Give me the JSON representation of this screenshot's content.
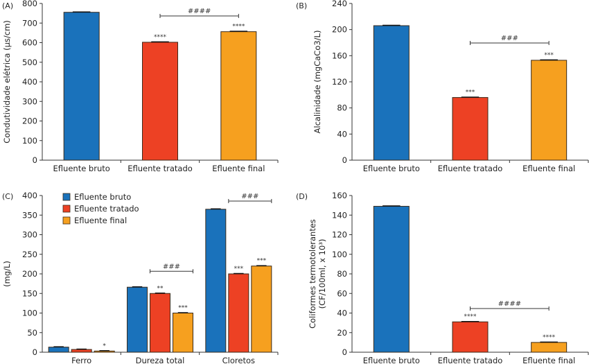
{
  "colors": {
    "Efluente bruto": "#1a72bb",
    "Efluente tratado": "#ed4124",
    "Efluente final": "#f6a01f"
  },
  "chart_data": [
    {
      "panel": "(A)",
      "type": "bar",
      "categories": [
        "Efluente bruto",
        "Efluente tratado",
        "Efluente final"
      ],
      "values": [
        755,
        602,
        656
      ],
      "ylabel": "Condutividade elétrica (µs/cm)",
      "xlabel": "",
      "ylim": [
        0,
        800
      ],
      "yticks": [
        0,
        100,
        200,
        300,
        400,
        500,
        600,
        700,
        800
      ],
      "significance": [
        "",
        "****",
        "****"
      ],
      "bracket": {
        "from": 1,
        "to": 2,
        "label": "####"
      }
    },
    {
      "panel": "(B)",
      "type": "bar",
      "categories": [
        "Efluente bruto",
        "Efluente tratado",
        "Efluente final"
      ],
      "values": [
        206,
        96,
        153
      ],
      "ylabel": "Alcalinidade (mgCaCo3/L)",
      "xlabel": "",
      "ylim": [
        0,
        240
      ],
      "yticks": [
        0,
        40,
        80,
        120,
        160,
        200,
        240
      ],
      "significance": [
        "",
        "***",
        "***"
      ],
      "bracket": {
        "from": 1,
        "to": 2,
        "label": "###"
      }
    },
    {
      "panel": "(C)",
      "type": "bar",
      "categories": [
        "Ferro",
        "Dureza total",
        "Cloretos"
      ],
      "series": [
        {
          "name": "Efluente bruto",
          "values": [
            13,
            166,
            365
          ]
        },
        {
          "name": "Efluente tratado",
          "values": [
            7,
            150,
            200
          ]
        },
        {
          "name": "Efluente final",
          "values": [
            3,
            100,
            220
          ]
        }
      ],
      "significance": [
        [
          "",
          "",
          "*"
        ],
        [
          "",
          "**",
          "***"
        ],
        [
          "",
          "***",
          "***"
        ]
      ],
      "brackets": [
        {
          "category": 1,
          "from": 1,
          "to": 2,
          "label": "###"
        },
        {
          "category": 2,
          "from": 1,
          "to": 2,
          "label": "###"
        }
      ],
      "ylabel": "(mg/L)",
      "xlabel": "",
      "ylim": [
        0,
        400
      ],
      "yticks": [
        0,
        50,
        100,
        150,
        200,
        250,
        300,
        350,
        400
      ],
      "legend": {
        "position": "top-left",
        "entries": [
          "Efluente bruto",
          "Efluente tratado",
          "Efluente final"
        ]
      }
    },
    {
      "panel": "(D)",
      "type": "bar",
      "categories": [
        "Efluente bruto",
        "Efluente tratado",
        "Efluente final"
      ],
      "values": [
        149,
        31,
        10
      ],
      "ylabel": "Coliformes termotolerantes",
      "ylabel2": "(CF/100ml, x 10³)",
      "xlabel": "",
      "ylim": [
        0,
        160
      ],
      "yticks": [
        0,
        20,
        40,
        60,
        80,
        100,
        120,
        140,
        160
      ],
      "significance": [
        "",
        "****",
        "****"
      ],
      "bracket": {
        "from": 1,
        "to": 2,
        "label": "####"
      }
    }
  ]
}
